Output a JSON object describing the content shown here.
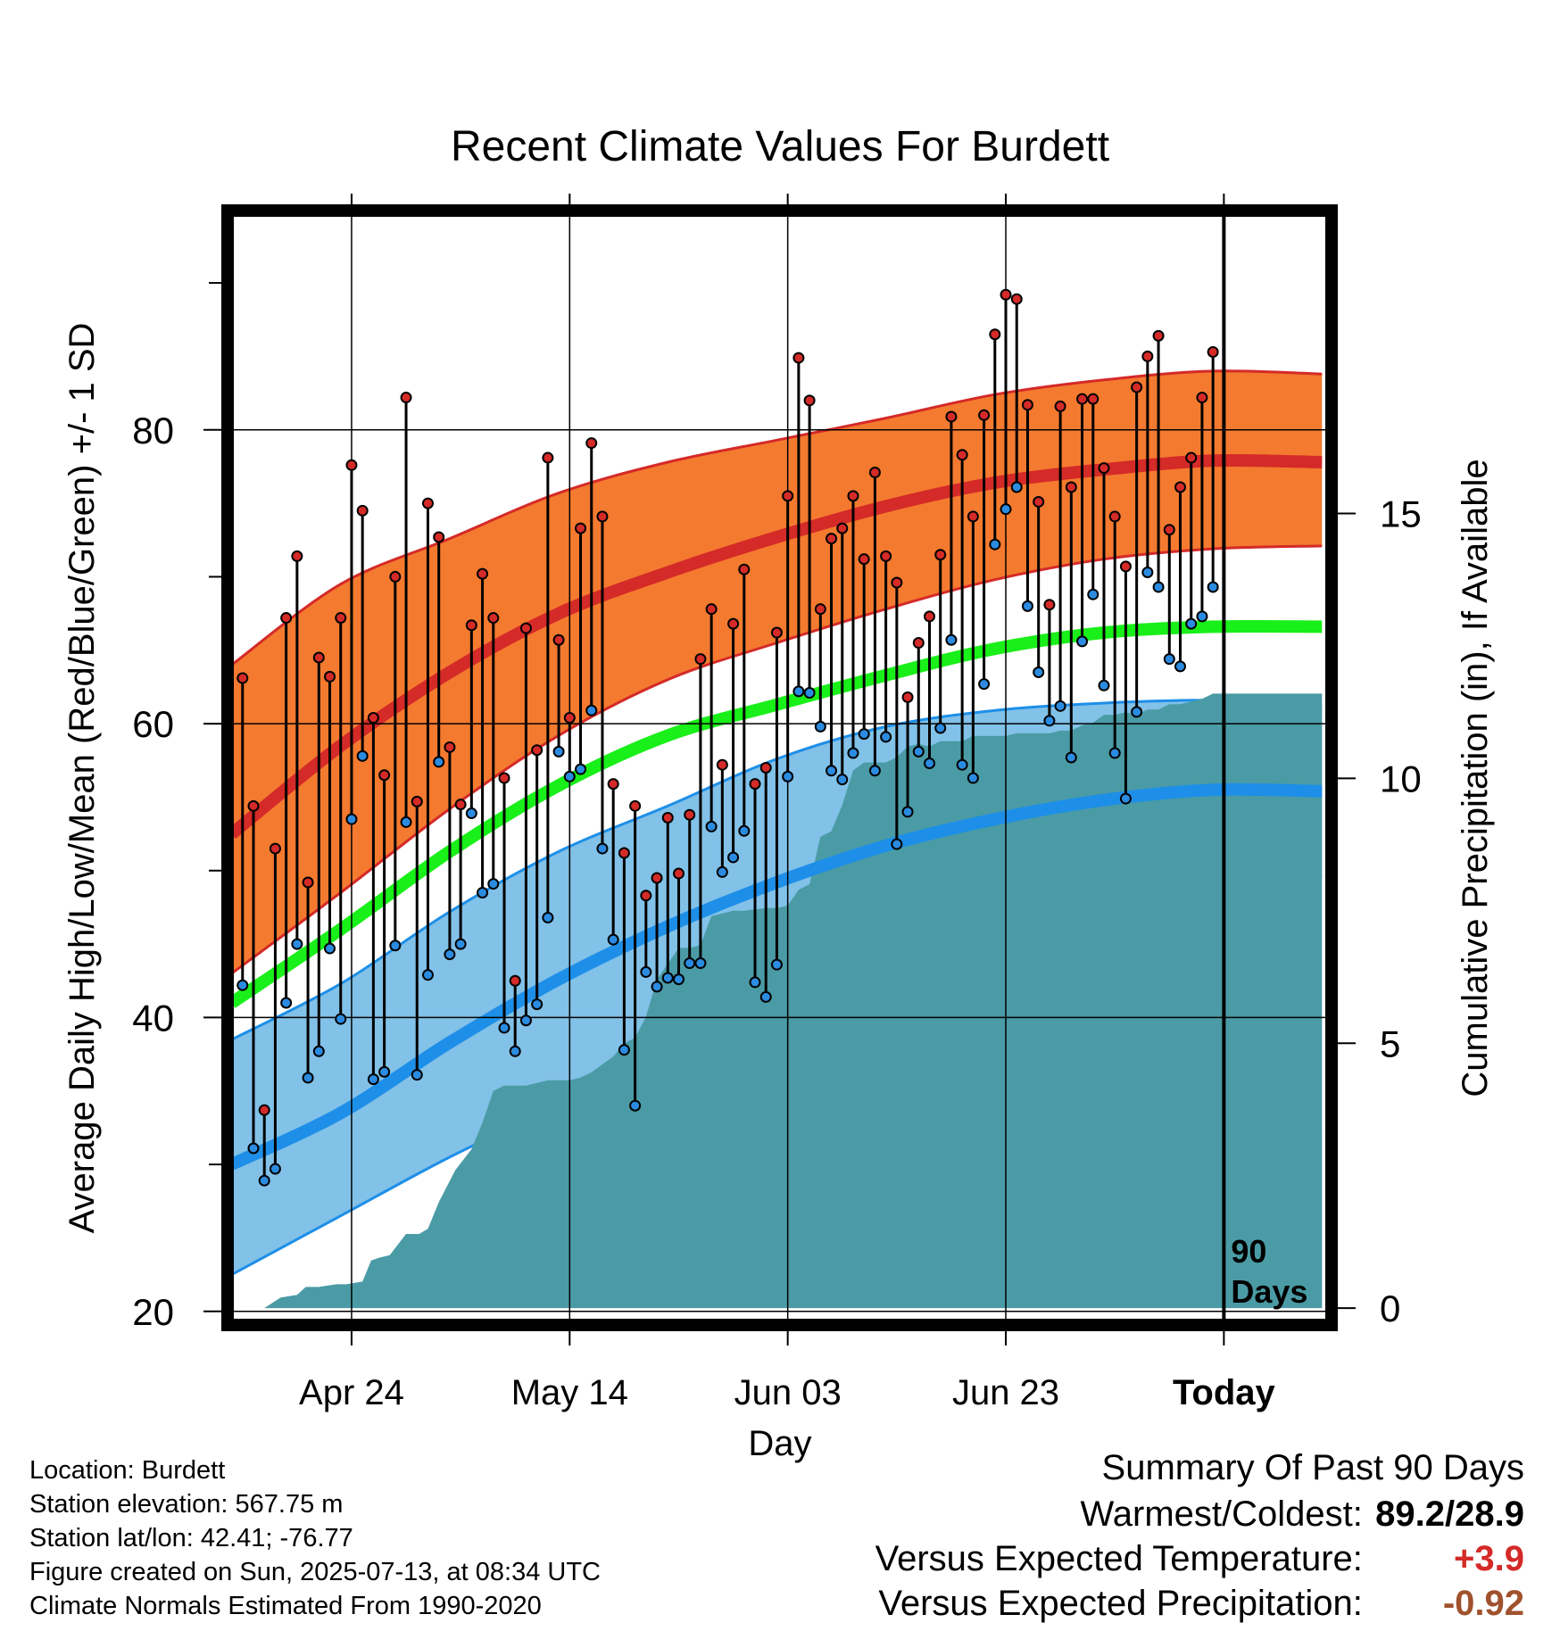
{
  "chart_data": {
    "type": "line",
    "title": "Recent Climate Values For Burdett",
    "xlabel": "Day",
    "ylabel": "Average Daily High/Low/Mean (Red/Blue/Green) +/- 1 SD",
    "y2label": "Cumulative Precipitation (in), If Available",
    "ylim": [
      19.5,
      94.5
    ],
    "y2lim": [
      -0.2,
      20.6
    ],
    "y_ticks": [
      20,
      40,
      60,
      80
    ],
    "y_minor_ticks": [
      30,
      50,
      70,
      90
    ],
    "y2_ticks": [
      0,
      5,
      10,
      15
    ],
    "x_ticks": [
      {
        "day": 11,
        "label": "Apr 24"
      },
      {
        "day": 31,
        "label": "May 14"
      },
      {
        "day": 51,
        "label": "Jun 03"
      },
      {
        "day": 71,
        "label": "Jun 23"
      },
      {
        "day": 91,
        "label": "Today"
      }
    ],
    "xlim": [
      0.2,
      100.3
    ],
    "today_marker": {
      "day": 91,
      "label_line1": "90",
      "label_line2": "Days"
    },
    "grid": true,
    "normals": {
      "days": [
        0,
        10,
        20,
        30,
        40,
        50,
        60,
        70,
        80,
        90,
        100
      ],
      "high": [
        52.5,
        58.5,
        63.5,
        67.5,
        70.3,
        72.7,
        74.8,
        76.4,
        77.3,
        77.9,
        77.8
      ],
      "high_plus_sd": [
        64,
        69.5,
        72.6,
        75.7,
        77.8,
        79.3,
        80.8,
        82.4,
        83.4,
        84.0,
        83.8
      ],
      "high_minus_sd": [
        43,
        48.5,
        54.2,
        59.2,
        63,
        65.5,
        67.8,
        69.8,
        71.2,
        71.9,
        72.1
      ],
      "mean": [
        41,
        46,
        51.3,
        55.8,
        59.2,
        61.3,
        63.3,
        65.1,
        66.2,
        66.6,
        66.6
      ],
      "low": [
        30,
        33.5,
        38.3,
        42.6,
        46.2,
        49.2,
        51.7,
        53.5,
        54.8,
        55.5,
        55.4
      ],
      "low_plus_sd": [
        38.5,
        42.3,
        47.2,
        51.3,
        54.4,
        57.6,
        59.8,
        60.9,
        61.4,
        61.6,
        61.3
      ],
      "low_minus_sd": [
        22.5,
        26.5,
        30.5,
        34,
        37.3,
        41,
        44,
        46.5,
        48.5,
        49.6,
        49.6
      ]
    },
    "series": [
      {
        "name": "High",
        "color": "#d42a28",
        "values": [
          63.1,
          54.4,
          33.7,
          51.5,
          67.2,
          71.4,
          49.2,
          64.5,
          63.2,
          67.2,
          77.6,
          74.5,
          60.4,
          56.5,
          70.0,
          82.2,
          54.7,
          75.0,
          72.7,
          58.4,
          54.5,
          66.7,
          70.2,
          67.2,
          56.3,
          42.5,
          66.5,
          58.2,
          78.1,
          65.7,
          60.4,
          73.3,
          79.1,
          74.1,
          55.9,
          51.2,
          54.4,
          48.3,
          49.5,
          53.6,
          49.8,
          53.8,
          64.4,
          67.8,
          57.2,
          66.8,
          70.5,
          55.9,
          57.0,
          66.2,
          75.5,
          84.9,
          82.0,
          67.8,
          72.6,
          73.3,
          75.5,
          71.2,
          77.1,
          71.4,
          69.6,
          61.8,
          65.5,
          67.3,
          71.5,
          80.9,
          78.3,
          74.1,
          81.0,
          86.5,
          89.2,
          88.9,
          81.7,
          75.1,
          68.1,
          81.6,
          76.1,
          82.1,
          82.1,
          77.4,
          74.1,
          70.7,
          82.9,
          85.0,
          86.4,
          73.2,
          76.1,
          78.1,
          82.2,
          85.3
        ]
      },
      {
        "name": "Low",
        "color": "#2b8be0",
        "values": [
          42.2,
          31.1,
          28.9,
          29.7,
          41.0,
          45.0,
          35.9,
          37.7,
          44.7,
          39.9,
          53.5,
          57.8,
          35.8,
          36.3,
          44.9,
          53.3,
          36.1,
          42.9,
          57.4,
          44.3,
          45.0,
          53.9,
          48.5,
          49.1,
          39.3,
          37.7,
          39.8,
          40.9,
          46.8,
          58.1,
          56.4,
          56.9,
          60.9,
          51.5,
          45.3,
          37.8,
          34.0,
          43.1,
          42.1,
          42.7,
          42.6,
          43.7,
          43.7,
          53.0,
          49.9,
          50.9,
          52.7,
          42.4,
          41.4,
          43.6,
          56.4,
          62.2,
          62.1,
          59.8,
          56.8,
          56.2,
          58.0,
          59.3,
          56.8,
          59.1,
          51.8,
          54.0,
          58.1,
          57.3,
          59.7,
          65.7,
          57.2,
          56.3,
          62.7,
          72.2,
          74.6,
          76.1,
          68.0,
          63.5,
          60.2,
          61.2,
          57.7,
          65.6,
          68.8,
          62.6,
          58.0,
          54.9,
          60.8,
          70.3,
          69.3,
          64.4,
          63.9,
          66.8,
          67.3,
          69.3
        ]
      }
    ],
    "precip": {
      "days": [
        0,
        3,
        4.5,
        6,
        6.8,
        8,
        9.6,
        10.5,
        12,
        12.8,
        13.5,
        14.5,
        16,
        17.2,
        18,
        19,
        20.5,
        22,
        23,
        24,
        25,
        26,
        27,
        28,
        29,
        31,
        32,
        33,
        35,
        36,
        37,
        38,
        39,
        40,
        41,
        42,
        43,
        44,
        45,
        46,
        47,
        49,
        50,
        51,
        52,
        53,
        54,
        55,
        56,
        57,
        58,
        60,
        61,
        62,
        63,
        64,
        65,
        67,
        68,
        70,
        71,
        72,
        74,
        75,
        76,
        77,
        78,
        79,
        80,
        81,
        82,
        83,
        84,
        85,
        86,
        87,
        88,
        89,
        90,
        91,
        100
      ],
      "values": [
        0,
        0,
        0.2,
        0.25,
        0.4,
        0.4,
        0.45,
        0.45,
        0.5,
        0.9,
        0.95,
        1.0,
        1.4,
        1.4,
        1.5,
        2.0,
        2.6,
        3.0,
        3.5,
        4.1,
        4.2,
        4.2,
        4.2,
        4.25,
        4.3,
        4.3,
        4.35,
        4.45,
        4.75,
        5.0,
        5.1,
        5.5,
        6.2,
        6.5,
        6.8,
        6.8,
        6.85,
        7.4,
        7.45,
        7.5,
        7.5,
        7.55,
        7.55,
        7.6,
        7.9,
        8.0,
        8.9,
        9.0,
        9.5,
        10.15,
        10.3,
        10.3,
        10.4,
        10.6,
        10.65,
        10.6,
        10.7,
        10.7,
        10.8,
        10.8,
        10.8,
        10.85,
        10.85,
        10.85,
        10.9,
        10.9,
        11.0,
        11.05,
        11.2,
        11.2,
        11.25,
        11.2,
        11.3,
        11.3,
        11.4,
        11.4,
        11.45,
        11.5,
        11.6,
        11.6,
        11.6
      ]
    },
    "colors": {
      "high_band": "#f47a2f",
      "high_line": "#d42a28",
      "low_band": "#82c1e8",
      "low_line": "#1e8fe8",
      "mean_line": "#19ef19",
      "precip": "#4a9ba5"
    }
  },
  "info": {
    "location": "Location: Burdett",
    "elevation": "Station elevation: 567.75 m",
    "latlon": "Station lat/lon: 42.41; -76.77",
    "created": "Figure created on Sun, 2025-07-13, at 08:34 UTC",
    "normals": "Climate Normals Estimated From 1990-2020"
  },
  "summary": {
    "title": "Summary Of Past 90 Days",
    "extremes_label": "Warmest/Coldest:",
    "extremes_value": "89.2/28.9",
    "temp_label": "Versus Expected Temperature:",
    "temp_value": "+3.9",
    "temp_color": "#d42a28",
    "precip_label": "Versus Expected Precipitation:",
    "precip_value": "-0.92",
    "precip_color": "#a0522d"
  }
}
